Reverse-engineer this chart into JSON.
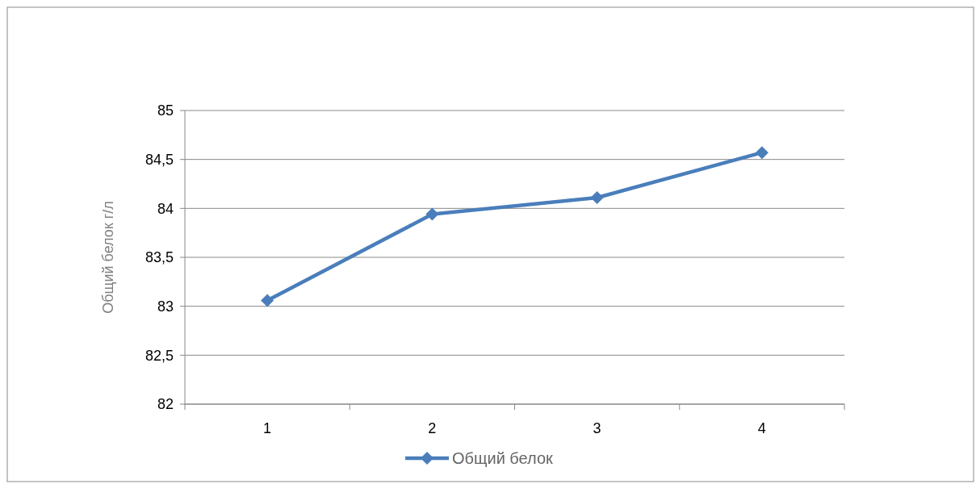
{
  "chart_data": {
    "type": "line",
    "ylabel": "Общий белок г/л",
    "categories": [
      "1",
      "2",
      "3",
      "4"
    ],
    "series": [
      {
        "name": "Общий белок",
        "color": "#4a7ebb",
        "values": [
          83.06,
          83.94,
          84.11,
          84.57
        ]
      }
    ],
    "ylim": [
      82,
      85
    ],
    "yticks": [
      82,
      {
        "value": 82.5,
        "label": "82,5"
      },
      83,
      {
        "value": 83.5,
        "label": "83,5"
      },
      84,
      {
        "value": 84.5,
        "label": "84,5"
      },
      85
    ],
    "grid": "y",
    "legend": "bottom",
    "marker": "diamond",
    "line_style": "solid"
  }
}
